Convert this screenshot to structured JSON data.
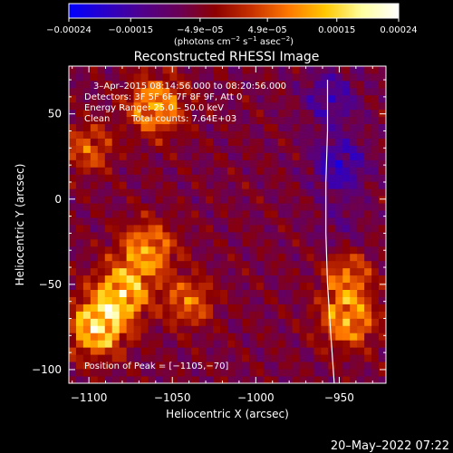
{
  "chart_data": {
    "type": "heatmap",
    "title": "Reconstructed RHESSI Image",
    "xlabel": "Heliocentric X (arcsec)",
    "ylabel": "Heliocentric Y (arcsec)",
    "xlim": [
      -1112,
      -922
    ],
    "ylim": [
      -108,
      78
    ],
    "x_ticks": [
      -1100,
      -1050,
      -1000,
      -950
    ],
    "x_tick_labels": [
      "−1100",
      "−1050",
      "−1000",
      "−950"
    ],
    "y_ticks": [
      -100,
      -50,
      0,
      50
    ],
    "y_tick_labels": [
      "−100",
      "−50",
      "0",
      "50"
    ],
    "colorbar": {
      "min": -0.00024,
      "max": 0.00024,
      "ticks": [
        -0.00024,
        -0.00015,
        -4.9e-05,
        4.9e-05,
        0.00015,
        0.00024
      ],
      "tick_labels": [
        "−0.00024",
        "−0.00015",
        "−4.9e−05",
        "4.9e−05",
        "0.00015",
        "0.00024"
      ],
      "units_prefix": "(photons cm",
      "units_exp1": "−2",
      "units_mid": " s",
      "units_exp2": "−1",
      "units_mid2": " asec",
      "units_exp3": "−2",
      "units_suffix": ")",
      "colors": [
        "#0000ff",
        "#2a00c8",
        "#50008c",
        "#6a0056",
        "#8c0000",
        "#c83200",
        "#ff7800",
        "#ffc800",
        "#ffffa0",
        "#ffffff"
      ]
    },
    "annotations": [
      "3–Apr–2015 08:14:56.000 to 08:20:56.000",
      "Detectors: 3F 5F 6F 7F 8F 9F, Att 0",
      "Energy Range: 25.0 – 50.0 keV",
      "Clean",
      "Total counts: 7.64E+03"
    ],
    "peak_label": "Position of Peak = [−1105,−70]",
    "peak": [
      -1105,
      -70
    ],
    "limb_curve": [
      [
        -957,
        70
      ],
      [
        -957,
        40
      ],
      [
        -958,
        10
      ],
      [
        -958,
        -20
      ],
      [
        -957,
        -50
      ],
      [
        -955,
        -80
      ],
      [
        -953,
        -108
      ]
    ],
    "emission_sources": [
      {
        "x": -1095,
        "y": -75,
        "value": 0.00024
      },
      {
        "x": -1080,
        "y": -55,
        "value": 0.0002
      },
      {
        "x": -1065,
        "y": -30,
        "value": 0.00016
      },
      {
        "x": -1060,
        "y": 55,
        "value": 0.00018
      },
      {
        "x": -1100,
        "y": 30,
        "value": 0.0001
      },
      {
        "x": -1040,
        "y": -60,
        "value": 0.00012
      },
      {
        "x": -945,
        "y": -70,
        "value": 0.00017
      },
      {
        "x": -945,
        "y": -45,
        "value": 0.00011
      },
      {
        "x": -950,
        "y": 20,
        "value": -0.00022
      },
      {
        "x": -955,
        "y": 60,
        "value": -0.00018
      },
      {
        "x": -950,
        "y": -15,
        "value": -0.00012
      }
    ],
    "grid": false
  },
  "footer": {
    "timestamp": "20–May–2022 07:22"
  }
}
